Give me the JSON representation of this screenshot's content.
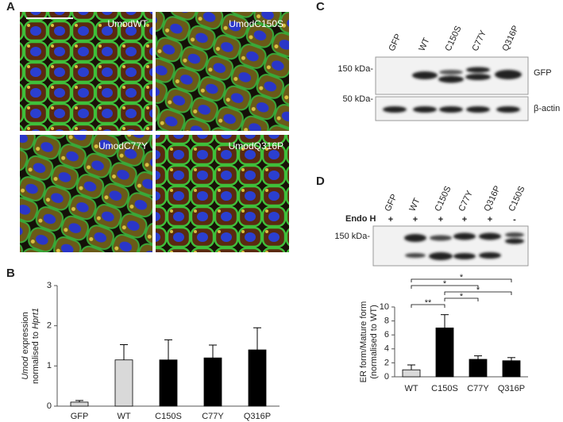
{
  "panel_labels": [
    "A",
    "B",
    "C",
    "D"
  ],
  "microscopy": {
    "tiles": [
      "UmodWT",
      "UmodC150S",
      "UmodC77Y",
      "UmodQ316P"
    ]
  },
  "blot_c": {
    "lanes": [
      "GFP",
      "WT",
      "C150S",
      "C77Y",
      "Q316P"
    ],
    "markers": [
      "150 kDa-",
      "50 kDa-"
    ],
    "bands": [
      "GFP",
      "β-actin"
    ]
  },
  "blot_d": {
    "lanes": [
      "GFP",
      "WT",
      "C150S",
      "C77Y",
      "Q316P",
      "C150S"
    ],
    "treatment": "Endo H",
    "endo_h": [
      "+",
      "+",
      "+",
      "+",
      "+",
      "-"
    ],
    "markers": [
      "150 kDa-"
    ]
  },
  "chart_data": [
    {
      "type": "bar",
      "y_label": [
        [
          {
            "text": "Umod",
            "italic": true
          },
          {
            "text": " expression",
            "italic": false
          }
        ],
        [
          {
            "text": "normalised to ",
            "italic": false
          },
          {
            "text": "Hprt1",
            "italic": true
          }
        ]
      ],
      "categories": [
        "GFP",
        "WT",
        "C150S",
        "C77Y",
        "Q316P"
      ],
      "values": [
        0.1,
        1.15,
        1.15,
        1.2,
        1.4
      ],
      "errors": [
        0.04,
        0.38,
        0.5,
        0.32,
        0.55
      ],
      "colors": [
        "#d9d9d9",
        "#d9d9d9",
        "#000000",
        "#000000",
        "#000000"
      ],
      "ylim": [
        0,
        3
      ],
      "yticks": [
        0,
        1,
        2,
        3
      ]
    },
    {
      "type": "bar",
      "y_label": [
        [
          {
            "text": "ER form/Mature form",
            "italic": false
          }
        ],
        [
          {
            "text": "(normalised to WT)",
            "italic": false
          }
        ]
      ],
      "categories": [
        "WT",
        "C150S",
        "C77Y",
        "Q316P"
      ],
      "values": [
        1,
        7,
        2.5,
        2.3
      ],
      "errors": [
        0.7,
        1.9,
        0.5,
        0.45
      ],
      "colors": [
        "#d9d9d9",
        "#000000",
        "#000000",
        "#000000"
      ],
      "ylim": [
        0,
        10
      ],
      "yticks": [
        0,
        2,
        4,
        6,
        8,
        10
      ],
      "significance": [
        {
          "between": [
            "WT",
            "Q316P"
          ],
          "label": "*"
        },
        {
          "between": [
            "WT",
            "C77Y"
          ],
          "label": "*"
        },
        {
          "between": [
            "C150S",
            "Q316P"
          ],
          "label": "*"
        },
        {
          "between": [
            "C150S",
            "C77Y"
          ],
          "label": "*"
        },
        {
          "between": [
            "WT",
            "C150S"
          ],
          "label": "**"
        }
      ]
    }
  ]
}
